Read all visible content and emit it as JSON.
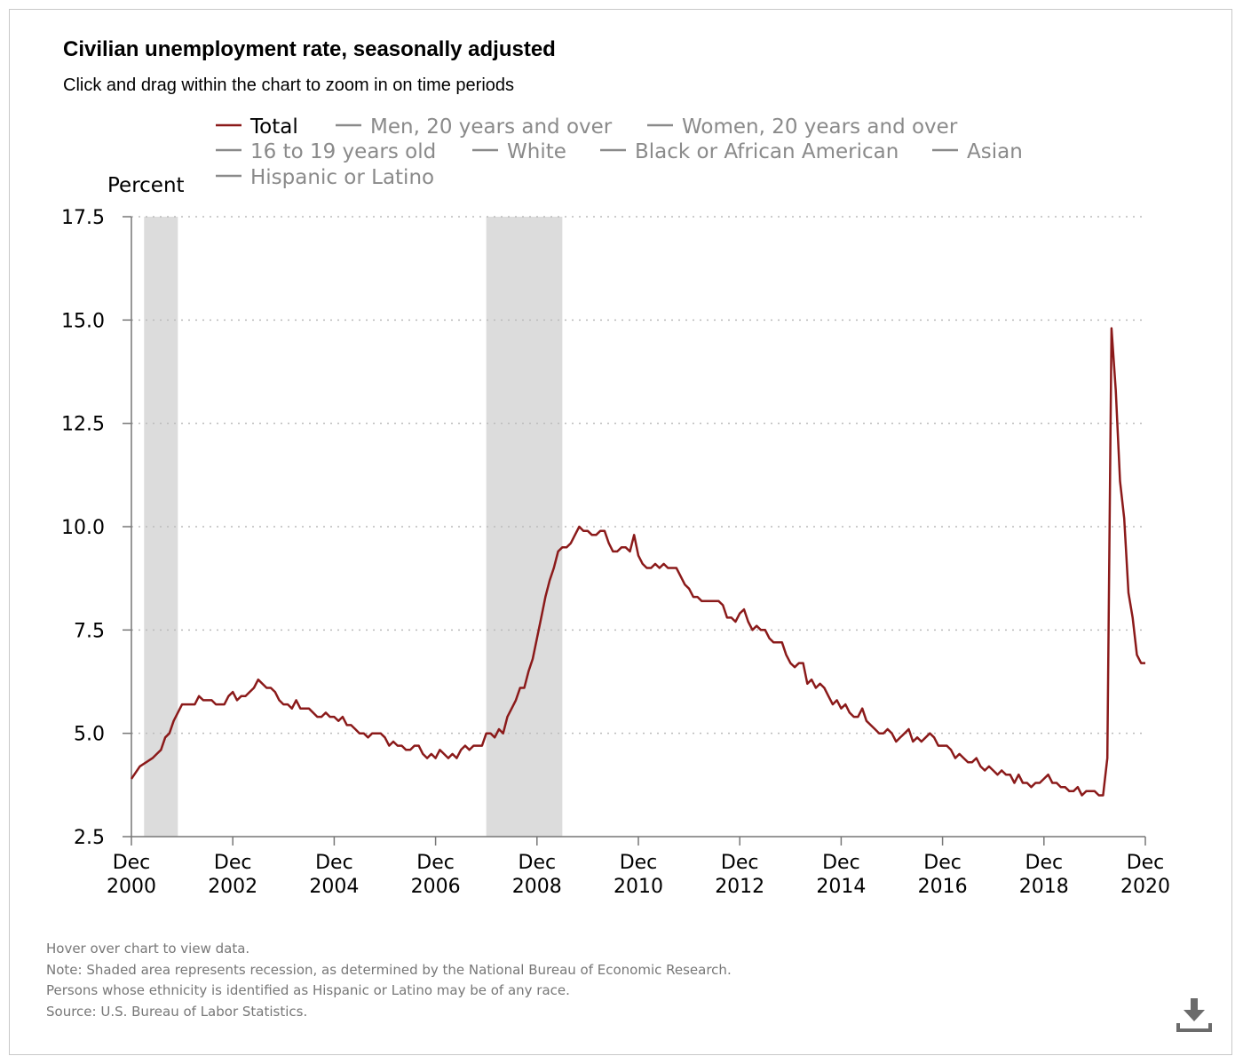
{
  "header": {
    "title": "Civilian unemployment rate, seasonally adjusted",
    "subtitle": "Click and drag within the chart to zoom in on time periods"
  },
  "footnotes": [
    "Hover over chart to view data.",
    "Note: Shaded area represents recession, as determined by the National Bureau of Economic Research.",
    "Persons whose ethnicity is identified as Hispanic or Latino may be of any race.",
    "Source: U.S. Bureau of Labor Statistics."
  ],
  "download": {
    "icon": "download-icon"
  },
  "colors": {
    "total": "#8b1a1a",
    "legend_inactive": "#8a8a8a",
    "recession": "#dcdcdc",
    "grid": "#bbbbbb",
    "axis": "#777777"
  },
  "chart_data": {
    "type": "line",
    "title": "Civilian unemployment rate, seasonally adjusted",
    "ylabel": "Percent",
    "ylim": [
      2.5,
      17.5
    ],
    "yticks": [
      "2.5",
      "5.0",
      "7.5",
      "10.0",
      "12.5",
      "15.0",
      "17.5"
    ],
    "xlim": [
      "2000-12",
      "2020-12"
    ],
    "xticks": [
      {
        "month": "Dec",
        "year": "2000"
      },
      {
        "month": "Dec",
        "year": "2002"
      },
      {
        "month": "Dec",
        "year": "2004"
      },
      {
        "month": "Dec",
        "year": "2006"
      },
      {
        "month": "Dec",
        "year": "2008"
      },
      {
        "month": "Dec",
        "year": "2010"
      },
      {
        "month": "Dec",
        "year": "2012"
      },
      {
        "month": "Dec",
        "year": "2014"
      },
      {
        "month": "Dec",
        "year": "2016"
      },
      {
        "month": "Dec",
        "year": "2018"
      },
      {
        "month": "Dec",
        "year": "2020"
      }
    ],
    "grid": "horizontal dotted",
    "legend_position": "top",
    "recessions": [
      [
        "2001-03",
        "2001-11"
      ],
      [
        "2007-12",
        "2009-06"
      ]
    ],
    "legend": [
      {
        "label": "Total",
        "active": true
      },
      {
        "label": "Men, 20 years and over",
        "active": false
      },
      {
        "label": "Women, 20 years and over",
        "active": false
      },
      {
        "label": "16 to 19 years old",
        "active": false
      },
      {
        "label": "White",
        "active": false
      },
      {
        "label": "Black or African American",
        "active": false
      },
      {
        "label": "Asian",
        "active": false
      },
      {
        "label": "Hispanic or Latino",
        "active": false
      }
    ],
    "series": [
      {
        "name": "Total",
        "points": [
          [
            "2000-12",
            3.9
          ],
          [
            "2001-02",
            4.2
          ],
          [
            "2001-05",
            4.4
          ],
          [
            "2001-06",
            4.5
          ],
          [
            "2001-07",
            4.6
          ],
          [
            "2001-08",
            4.9
          ],
          [
            "2001-09",
            5.0
          ],
          [
            "2001-10",
            5.3
          ],
          [
            "2001-11",
            5.5
          ],
          [
            "2001-12",
            5.7
          ],
          [
            "2002-03",
            5.7
          ],
          [
            "2002-04",
            5.9
          ],
          [
            "2002-05",
            5.8
          ],
          [
            "2002-06",
            5.8
          ],
          [
            "2002-07",
            5.8
          ],
          [
            "2002-08",
            5.7
          ],
          [
            "2002-10",
            5.7
          ],
          [
            "2002-11",
            5.9
          ],
          [
            "2002-12",
            6.0
          ],
          [
            "2003-01",
            5.8
          ],
          [
            "2003-02",
            5.9
          ],
          [
            "2003-03",
            5.9
          ],
          [
            "2003-04",
            6.0
          ],
          [
            "2003-05",
            6.1
          ],
          [
            "2003-06",
            6.3
          ],
          [
            "2003-08",
            6.1
          ],
          [
            "2003-09",
            6.1
          ],
          [
            "2003-10",
            6.0
          ],
          [
            "2003-11",
            5.8
          ],
          [
            "2003-12",
            5.7
          ],
          [
            "2004-01",
            5.7
          ],
          [
            "2004-02",
            5.6
          ],
          [
            "2004-03",
            5.8
          ],
          [
            "2004-04",
            5.6
          ],
          [
            "2004-06",
            5.6
          ],
          [
            "2004-08",
            5.4
          ],
          [
            "2004-09",
            5.4
          ],
          [
            "2004-10",
            5.5
          ],
          [
            "2004-11",
            5.4
          ],
          [
            "2004-12",
            5.4
          ],
          [
            "2005-01",
            5.3
          ],
          [
            "2005-02",
            5.4
          ],
          [
            "2005-03",
            5.2
          ],
          [
            "2005-04",
            5.2
          ],
          [
            "2005-05",
            5.1
          ],
          [
            "2005-06",
            5.0
          ],
          [
            "2005-07",
            5.0
          ],
          [
            "2005-08",
            4.9
          ],
          [
            "2005-09",
            5.0
          ],
          [
            "2005-11",
            5.0
          ],
          [
            "2005-12",
            4.9
          ],
          [
            "2006-01",
            4.7
          ],
          [
            "2006-02",
            4.8
          ],
          [
            "2006-03",
            4.7
          ],
          [
            "2006-04",
            4.7
          ],
          [
            "2006-05",
            4.6
          ],
          [
            "2006-06",
            4.6
          ],
          [
            "2006-07",
            4.7
          ],
          [
            "2006-08",
            4.7
          ],
          [
            "2006-09",
            4.5
          ],
          [
            "2006-10",
            4.4
          ],
          [
            "2006-11",
            4.5
          ],
          [
            "2006-12",
            4.4
          ],
          [
            "2007-01",
            4.6
          ],
          [
            "2007-02",
            4.5
          ],
          [
            "2007-03",
            4.4
          ],
          [
            "2007-04",
            4.5
          ],
          [
            "2007-05",
            4.4
          ],
          [
            "2007-06",
            4.6
          ],
          [
            "2007-07",
            4.7
          ],
          [
            "2007-08",
            4.6
          ],
          [
            "2007-09",
            4.7
          ],
          [
            "2007-11",
            4.7
          ],
          [
            "2007-12",
            5.0
          ],
          [
            "2008-01",
            5.0
          ],
          [
            "2008-02",
            4.9
          ],
          [
            "2008-03",
            5.1
          ],
          [
            "2008-04",
            5.0
          ],
          [
            "2008-05",
            5.4
          ],
          [
            "2008-06",
            5.6
          ],
          [
            "2008-07",
            5.8
          ],
          [
            "2008-08",
            6.1
          ],
          [
            "2008-09",
            6.1
          ],
          [
            "2008-10",
            6.5
          ],
          [
            "2008-11",
            6.8
          ],
          [
            "2008-12",
            7.3
          ],
          [
            "2009-01",
            7.8
          ],
          [
            "2009-02",
            8.3
          ],
          [
            "2009-03",
            8.7
          ],
          [
            "2009-04",
            9.0
          ],
          [
            "2009-05",
            9.4
          ],
          [
            "2009-06",
            9.5
          ],
          [
            "2009-07",
            9.5
          ],
          [
            "2009-08",
            9.6
          ],
          [
            "2009-09",
            9.8
          ],
          [
            "2009-10",
            10.0
          ],
          [
            "2009-11",
            9.9
          ],
          [
            "2009-12",
            9.9
          ],
          [
            "2010-01",
            9.8
          ],
          [
            "2010-02",
            9.8
          ],
          [
            "2010-03",
            9.9
          ],
          [
            "2010-04",
            9.9
          ],
          [
            "2010-05",
            9.6
          ],
          [
            "2010-06",
            9.4
          ],
          [
            "2010-07",
            9.4
          ],
          [
            "2010-08",
            9.5
          ],
          [
            "2010-09",
            9.5
          ],
          [
            "2010-10",
            9.4
          ],
          [
            "2010-11",
            9.8
          ],
          [
            "2010-12",
            9.3
          ],
          [
            "2011-01",
            9.1
          ],
          [
            "2011-02",
            9.0
          ],
          [
            "2011-03",
            9.0
          ],
          [
            "2011-04",
            9.1
          ],
          [
            "2011-05",
            9.0
          ],
          [
            "2011-06",
            9.1
          ],
          [
            "2011-07",
            9.0
          ],
          [
            "2011-08",
            9.0
          ],
          [
            "2011-09",
            9.0
          ],
          [
            "2011-10",
            8.8
          ],
          [
            "2011-11",
            8.6
          ],
          [
            "2011-12",
            8.5
          ],
          [
            "2012-01",
            8.3
          ],
          [
            "2012-02",
            8.3
          ],
          [
            "2012-03",
            8.2
          ],
          [
            "2012-04",
            8.2
          ],
          [
            "2012-05",
            8.2
          ],
          [
            "2012-06",
            8.2
          ],
          [
            "2012-07",
            8.2
          ],
          [
            "2012-08",
            8.1
          ],
          [
            "2012-09",
            7.8
          ],
          [
            "2012-10",
            7.8
          ],
          [
            "2012-11",
            7.7
          ],
          [
            "2012-12",
            7.9
          ],
          [
            "2013-01",
            8.0
          ],
          [
            "2013-02",
            7.7
          ],
          [
            "2013-03",
            7.5
          ],
          [
            "2013-04",
            7.6
          ],
          [
            "2013-05",
            7.5
          ],
          [
            "2013-06",
            7.5
          ],
          [
            "2013-07",
            7.3
          ],
          [
            "2013-08",
            7.2
          ],
          [
            "2013-09",
            7.2
          ],
          [
            "2013-10",
            7.2
          ],
          [
            "2013-11",
            6.9
          ],
          [
            "2013-12",
            6.7
          ],
          [
            "2014-01",
            6.6
          ],
          [
            "2014-02",
            6.7
          ],
          [
            "2014-03",
            6.7
          ],
          [
            "2014-04",
            6.2
          ],
          [
            "2014-05",
            6.3
          ],
          [
            "2014-06",
            6.1
          ],
          [
            "2014-07",
            6.2
          ],
          [
            "2014-08",
            6.1
          ],
          [
            "2014-09",
            5.9
          ],
          [
            "2014-10",
            5.7
          ],
          [
            "2014-11",
            5.8
          ],
          [
            "2014-12",
            5.6
          ],
          [
            "2015-01",
            5.7
          ],
          [
            "2015-02",
            5.5
          ],
          [
            "2015-03",
            5.4
          ],
          [
            "2015-04",
            5.4
          ],
          [
            "2015-05",
            5.6
          ],
          [
            "2015-06",
            5.3
          ],
          [
            "2015-07",
            5.2
          ],
          [
            "2015-08",
            5.1
          ],
          [
            "2015-09",
            5.0
          ],
          [
            "2015-10",
            5.0
          ],
          [
            "2015-11",
            5.1
          ],
          [
            "2015-12",
            5.0
          ],
          [
            "2016-01",
            4.8
          ],
          [
            "2016-02",
            4.9
          ],
          [
            "2016-03",
            5.0
          ],
          [
            "2016-04",
            5.1
          ],
          [
            "2016-05",
            4.8
          ],
          [
            "2016-06",
            4.9
          ],
          [
            "2016-07",
            4.8
          ],
          [
            "2016-08",
            4.9
          ],
          [
            "2016-09",
            5.0
          ],
          [
            "2016-10",
            4.9
          ],
          [
            "2016-11",
            4.7
          ],
          [
            "2016-12",
            4.7
          ],
          [
            "2017-01",
            4.7
          ],
          [
            "2017-02",
            4.6
          ],
          [
            "2017-03",
            4.4
          ],
          [
            "2017-04",
            4.5
          ],
          [
            "2017-05",
            4.4
          ],
          [
            "2017-06",
            4.3
          ],
          [
            "2017-07",
            4.3
          ],
          [
            "2017-08",
            4.4
          ],
          [
            "2017-09",
            4.2
          ],
          [
            "2017-10",
            4.1
          ],
          [
            "2017-11",
            4.2
          ],
          [
            "2017-12",
            4.1
          ],
          [
            "2018-01",
            4.0
          ],
          [
            "2018-02",
            4.1
          ],
          [
            "2018-03",
            4.0
          ],
          [
            "2018-04",
            4.0
          ],
          [
            "2018-05",
            3.8
          ],
          [
            "2018-06",
            4.0
          ],
          [
            "2018-07",
            3.8
          ],
          [
            "2018-08",
            3.8
          ],
          [
            "2018-09",
            3.7
          ],
          [
            "2018-10",
            3.8
          ],
          [
            "2018-11",
            3.8
          ],
          [
            "2018-12",
            3.9
          ],
          [
            "2019-01",
            4.0
          ],
          [
            "2019-02",
            3.8
          ],
          [
            "2019-03",
            3.8
          ],
          [
            "2019-04",
            3.7
          ],
          [
            "2019-05",
            3.7
          ],
          [
            "2019-06",
            3.6
          ],
          [
            "2019-07",
            3.6
          ],
          [
            "2019-08",
            3.7
          ],
          [
            "2019-09",
            3.5
          ],
          [
            "2019-10",
            3.6
          ],
          [
            "2019-11",
            3.6
          ],
          [
            "2019-12",
            3.6
          ],
          [
            "2020-01",
            3.5
          ],
          [
            "2020-02",
            3.5
          ],
          [
            "2020-03",
            4.4
          ],
          [
            "2020-04",
            14.8
          ],
          [
            "2020-05",
            13.3
          ],
          [
            "2020-06",
            11.1
          ],
          [
            "2020-07",
            10.2
          ],
          [
            "2020-08",
            8.4
          ],
          [
            "2020-09",
            7.8
          ],
          [
            "2020-10",
            6.9
          ],
          [
            "2020-11",
            6.7
          ],
          [
            "2020-12",
            6.7
          ]
        ]
      }
    ]
  }
}
